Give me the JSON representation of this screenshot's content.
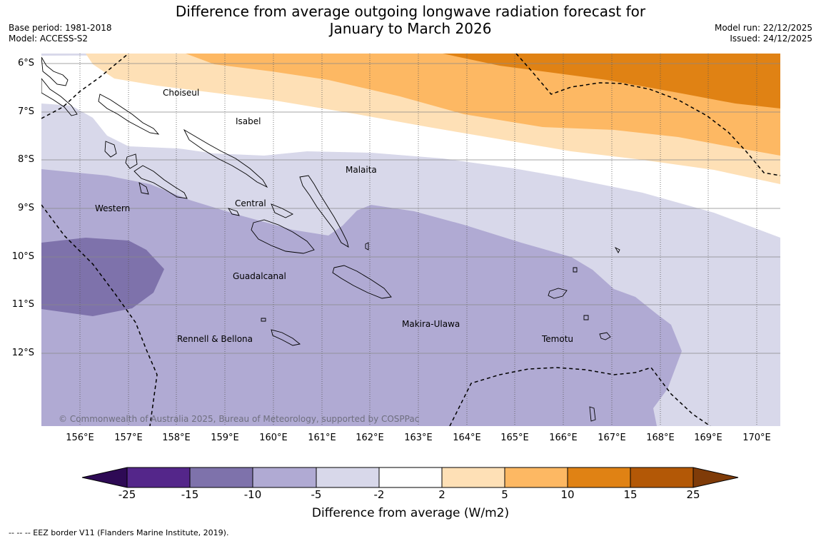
{
  "title": {
    "line1": "Difference from average outgoing longwave radiation forecast for",
    "line2": "January to March 2026"
  },
  "meta_left": {
    "base_period": "Base period: 1981-2018",
    "model": "Model: ACCESS-S2"
  },
  "meta_right": {
    "model_run": "Model run: 22/12/2025",
    "issued": "Issued: 24/12/2025"
  },
  "map": {
    "lon_labels": [
      "156°E",
      "157°E",
      "158°E",
      "159°E",
      "160°E",
      "161°E",
      "162°E",
      "163°E",
      "164°E",
      "165°E",
      "166°E",
      "167°E",
      "168°E",
      "169°E",
      "170°E"
    ],
    "lat_labels": [
      "6°S",
      "7°S",
      "8°S",
      "9°S",
      "10°S",
      "11°S",
      "12°S"
    ],
    "regions": {
      "choiseul": "Choiseul",
      "isabel": "Isabel",
      "malaita": "Malaita",
      "western": "Western",
      "central": "Central",
      "guadalcanal": "Guadalcanal",
      "makira": "Makira-Ulawa",
      "rennell": "Rennell & Bellona",
      "temotu": "Temotu"
    },
    "copyright": "© Commonwealth of Australia 2025, Bureau of Meteorology, supported by COSPPac"
  },
  "colorbar": {
    "ticks": [
      "-25",
      "-15",
      "-10",
      "-5",
      "-2",
      "2",
      "5",
      "10",
      "15",
      "25"
    ],
    "colors": {
      "below_min": "#2e0a55",
      "neg25_neg15": "#54268a",
      "neg15_neg10": "#7e72ab",
      "neg10_neg5": "#b0aad3",
      "neg5_neg2": "#d8d8ea",
      "neg2_pos2": "#ffffff",
      "pos2_pos5": "#fee0b6",
      "pos5_pos10": "#fdb863",
      "pos10_pos15": "#e08214",
      "pos15_pos25": "#b35806",
      "above_max": "#7f3b08"
    },
    "label": "Difference from average (W/m2)"
  },
  "legend": "--  --  -- EEZ border V11 (Flanders Marine Institute, 2019)."
}
